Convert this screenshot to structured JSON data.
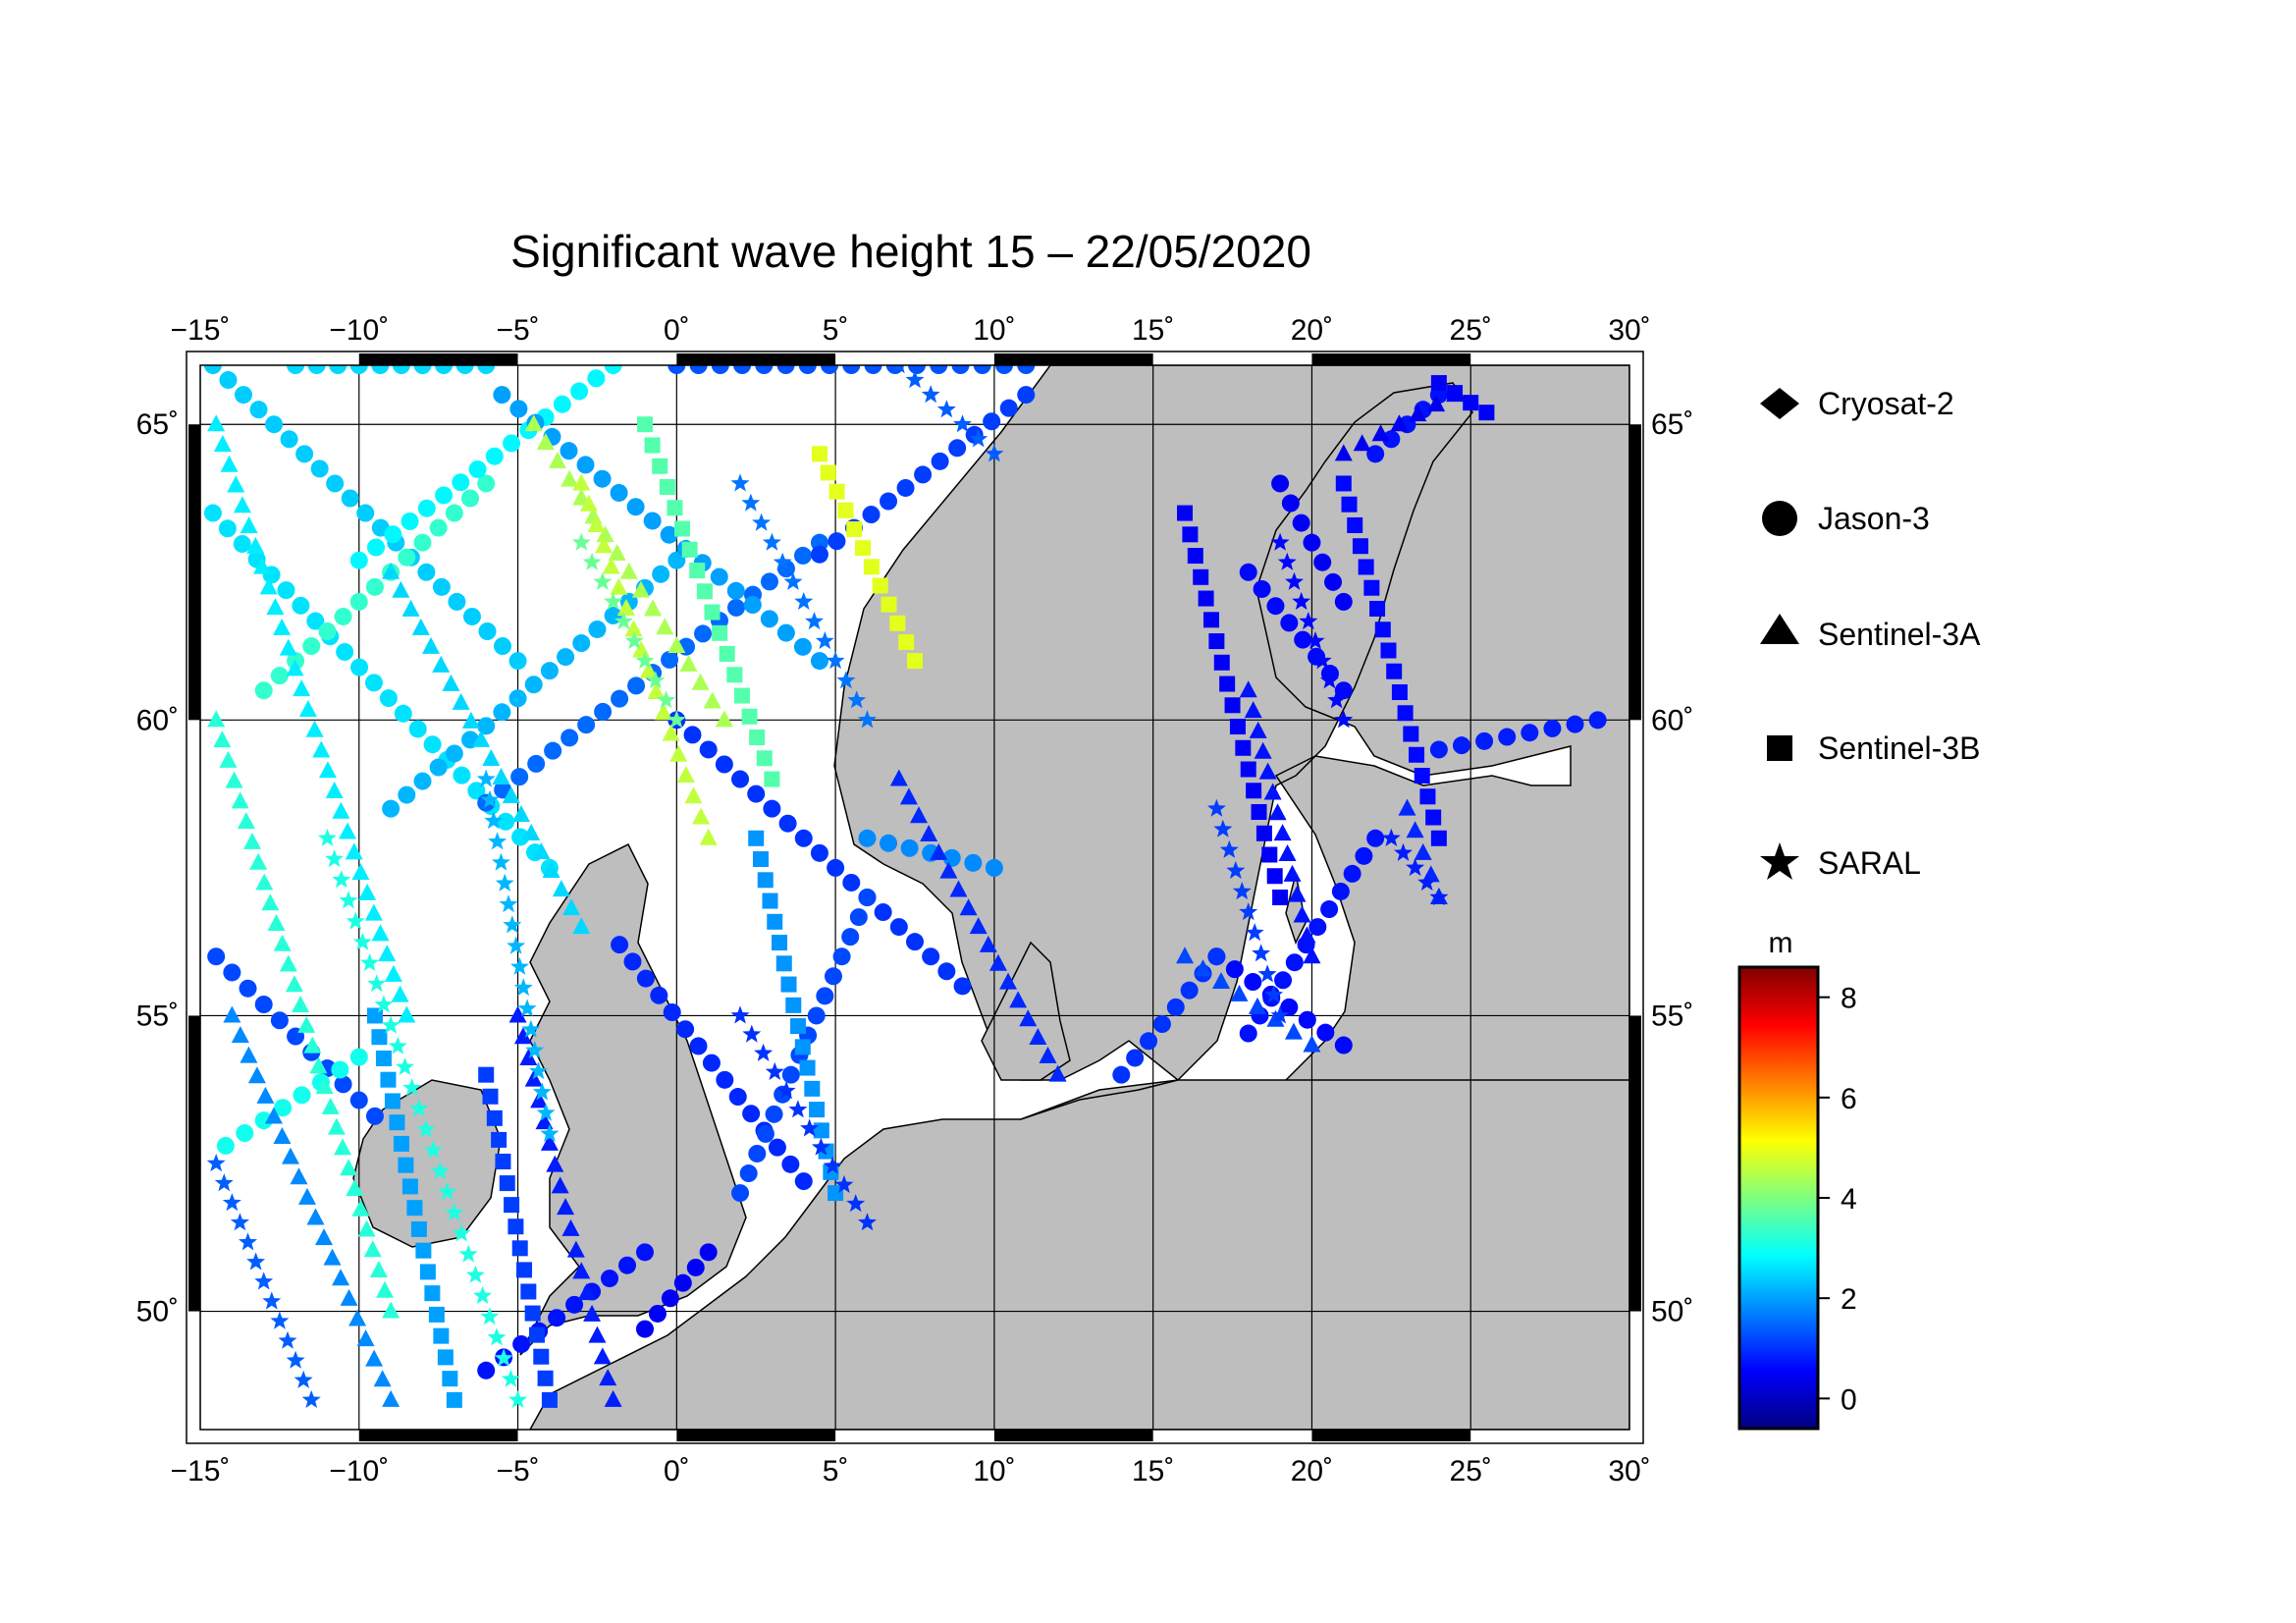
{
  "figure": {
    "title": "Significant wave height 15 – 22/05/2020"
  },
  "map": {
    "lon_range": [
      -15,
      30
    ],
    "lat_range": [
      48,
      66
    ],
    "lon_ticks": [
      {
        "value": -15,
        "label": "−15˚"
      },
      {
        "value": -10,
        "label": "−10˚"
      },
      {
        "value": -5,
        "label": "−5˚"
      },
      {
        "value": 0,
        "label": "0˚"
      },
      {
        "value": 5,
        "label": "5˚"
      },
      {
        "value": 10,
        "label": "10˚"
      },
      {
        "value": 15,
        "label": "15˚"
      },
      {
        "value": 20,
        "label": "20˚"
      },
      {
        "value": 25,
        "label": "25˚"
      },
      {
        "value": 30,
        "label": "30˚"
      }
    ],
    "lat_ticks": [
      {
        "value": 50,
        "label": "50˚"
      },
      {
        "value": 55,
        "label": "55˚"
      },
      {
        "value": 60,
        "label": "60˚"
      },
      {
        "value": 65,
        "label": "65˚"
      }
    ],
    "grid": true,
    "land_color": "#bebebe",
    "sea_color": "#ffffff",
    "frame_style": "alternating black and white"
  },
  "legend": {
    "placement": "right",
    "items": [
      {
        "label": "Cryosat-2",
        "symbol": "diamond"
      },
      {
        "label": "Jason-3",
        "symbol": "circle"
      },
      {
        "label": "Sentinel-3A",
        "symbol": "triangle"
      },
      {
        "label": "Sentinel-3B",
        "symbol": "square"
      },
      {
        "label": "SARAL",
        "symbol": "star"
      }
    ]
  },
  "colorbar": {
    "unit": "m",
    "range": [
      -0.6,
      8.6
    ],
    "ticks": [
      {
        "value": 0,
        "label": "0"
      },
      {
        "value": 2,
        "label": "2"
      },
      {
        "value": 4,
        "label": "4"
      },
      {
        "value": 6,
        "label": "6"
      },
      {
        "value": 8,
        "label": "8"
      }
    ],
    "colormap": "jet",
    "colors": [
      "#00007f",
      "#0000ff",
      "#007fff",
      "#00ffff",
      "#7fff7f",
      "#ffff00",
      "#ff7f00",
      "#ff0000",
      "#7f0000"
    ]
  },
  "chart_data": {
    "type": "scatter",
    "title": "Significant wave height 15 – 22/05/2020",
    "xlabel": "",
    "ylabel": "",
    "xlim": [
      -15,
      30
    ],
    "ylim": [
      48,
      66
    ],
    "value_unit": "m",
    "series": [
      {
        "name": "Jason-3",
        "symbol": "circle",
        "tracks": [
          {
            "lon": [
              -14.6,
              -5.0
            ],
            "lat": [
              66.0,
              61.0
            ],
            "value": 2.4
          },
          {
            "lon": [
              -14.6,
              -4.0
            ],
            "lat": [
              63.5,
              57.5
            ],
            "value": 2.6
          },
          {
            "lon": [
              -14.5,
              -9.5
            ],
            "lat": [
              56.0,
              53.3
            ],
            "value": 1.2
          },
          {
            "lon": [
              -14.2,
              -10.0
            ],
            "lat": [
              52.8,
              54.3
            ],
            "value": 3.0
          },
          {
            "lon": [
              -13.0,
              -6.0
            ],
            "lat": [
              60.5,
              64.0
            ],
            "value": 3.3
          },
          {
            "lon": [
              -10.0,
              -2.0
            ],
            "lat": [
              62.7,
              66.0
            ],
            "value": 2.8
          },
          {
            "lon": [
              -9.0,
              0.0
            ],
            "lat": [
              58.5,
              62.7
            ],
            "value": 2.2
          },
          {
            "lon": [
              -6.0,
              4.5
            ],
            "lat": [
              58.6,
              63.0
            ],
            "value": 1.5
          },
          {
            "lon": [
              -5.5,
              4.5
            ],
            "lat": [
              65.5,
              61.0
            ],
            "value": 2.0
          },
          {
            "lon": [
              0.0,
              9.0
            ],
            "lat": [
              60.0,
              55.5
            ],
            "value": 1.0
          },
          {
            "lon": [
              -1.8,
              4.0
            ],
            "lat": [
              56.2,
              52.2
            ],
            "value": 0.9
          },
          {
            "lon": [
              2.0,
              6.0
            ],
            "lat": [
              52.0,
              57.0
            ],
            "value": 1.2
          },
          {
            "lon": [
              4.5,
              11.0
            ],
            "lat": [
              62.8,
              65.5
            ],
            "value": 1.1
          },
          {
            "lon": [
              6.0,
              10.0
            ],
            "lat": [
              58.0,
              57.5
            ],
            "value": 1.8
          },
          {
            "lon": [
              -12.0,
              -6.0
            ],
            "lat": [
              66.0,
              66.0
            ],
            "value": 2.5
          },
          {
            "lon": [
              0.0,
              11.0
            ],
            "lat": [
              66.0,
              66.0
            ],
            "value": 1.3
          },
          {
            "lon": [
              -6.0,
              -1.0
            ],
            "lat": [
              49.0,
              51.0
            ],
            "value": 0.7
          },
          {
            "lon": [
              -1.0,
              1.0
            ],
            "lat": [
              49.7,
              51.0
            ],
            "value": 0.5
          },
          {
            "lon": [
              18.0,
              21.0
            ],
            "lat": [
              62.5,
              60.5
            ],
            "value": 0.6
          },
          {
            "lon": [
              19.0,
              21.0
            ],
            "lat": [
              64.0,
              62.0
            ],
            "value": 0.5
          },
          {
            "lon": [
              22.0,
              24.0
            ],
            "lat": [
              64.5,
              65.5
            ],
            "value": 0.7
          },
          {
            "lon": [
              24.0,
              29.0
            ],
            "lat": [
              59.5,
              60.0
            ],
            "value": 0.8
          },
          {
            "lon": [
              17.0,
              21.0
            ],
            "lat": [
              56.0,
              54.5
            ],
            "value": 0.6
          },
          {
            "lon": [
              18.0,
              22.0
            ],
            "lat": [
              54.7,
              58.0
            ],
            "value": 0.7
          },
          {
            "lon": [
              14.0,
              17.0
            ],
            "lat": [
              54.0,
              56.0
            ],
            "value": 1.0
          }
        ]
      },
      {
        "name": "Sentinel-3A",
        "symbol": "triangle",
        "tracks": [
          {
            "lon": [
              -14.5,
              -8.5
            ],
            "lat": [
              65.0,
              55.0
            ],
            "value": 2.7
          },
          {
            "lon": [
              -14.5,
              -9.0
            ],
            "lat": [
              60.0,
              50.0
            ],
            "value": 3.2
          },
          {
            "lon": [
              -14.0,
              -9.0
            ],
            "lat": [
              55.0,
              48.5
            ],
            "value": 1.8
          },
          {
            "lon": [
              -9.0,
              -3.0
            ],
            "lat": [
              62.5,
              56.5
            ],
            "value": 2.5
          },
          {
            "lon": [
              -5.0,
              -2.0
            ],
            "lat": [
              55.0,
              48.5
            ],
            "value": 0.8
          },
          {
            "lon": [
              -4.5,
              1.5
            ],
            "lat": [
              65.0,
              60.0
            ],
            "value": 4.4
          },
          {
            "lon": [
              -3.0,
              1.0
            ],
            "lat": [
              64.0,
              58.0
            ],
            "value": 4.6
          },
          {
            "lon": [
              7.0,
              12.0
            ],
            "lat": [
              59.0,
              54.0
            ],
            "value": 0.9
          },
          {
            "lon": [
              18.0,
              20.0
            ],
            "lat": [
              60.5,
              56.0
            ],
            "value": 0.7
          },
          {
            "lon": [
              16.0,
              20.0
            ],
            "lat": [
              56.0,
              54.5
            ],
            "value": 1.2
          },
          {
            "lon": [
              21.0,
              24.5
            ],
            "lat": [
              64.5,
              65.5
            ],
            "value": 0.4
          },
          {
            "lon": [
              23.0,
              24.0
            ],
            "lat": [
              58.5,
              57.0
            ],
            "value": 0.9
          }
        ]
      },
      {
        "name": "Sentinel-3B",
        "symbol": "square",
        "tracks": [
          {
            "lon": [
              -9.5,
              -7.0
            ],
            "lat": [
              55.0,
              48.5
            ],
            "value": 2.0
          },
          {
            "lon": [
              -6.0,
              -4.0
            ],
            "lat": [
              54.0,
              48.5
            ],
            "value": 1.1
          },
          {
            "lon": [
              -1.0,
              3.0
            ],
            "lat": [
              65.0,
              59.0
            ],
            "value": 3.6
          },
          {
            "lon": [
              2.5,
              5.0
            ],
            "lat": [
              58.0,
              52.0
            ],
            "value": 1.9
          },
          {
            "lon": [
              4.5,
              7.5
            ],
            "lat": [
              64.5,
              61.0
            ],
            "value": 4.9
          },
          {
            "lon": [
              16.0,
              19.0
            ],
            "lat": [
              63.5,
              57.0
            ],
            "value": 0.5
          },
          {
            "lon": [
              21.0,
              24.0
            ],
            "lat": [
              64.0,
              58.0
            ],
            "value": 0.6
          },
          {
            "lon": [
              24.0,
              25.5
            ],
            "lat": [
              65.7,
              65.2
            ],
            "value": 0.5
          }
        ]
      },
      {
        "name": "SARAL",
        "symbol": "star",
        "tracks": [
          {
            "lon": [
              -14.5,
              -11.5
            ],
            "lat": [
              52.5,
              48.5
            ],
            "value": 1.4
          },
          {
            "lon": [
              -11.0,
              -5.0
            ],
            "lat": [
              58.0,
              48.5
            ],
            "value": 3.1
          },
          {
            "lon": [
              -6.0,
              -4.0
            ],
            "lat": [
              59.0,
              53.0
            ],
            "value": 2.2
          },
          {
            "lon": [
              -3.0,
              0.0
            ],
            "lat": [
              63.0,
              60.0
            ],
            "value": 3.8
          },
          {
            "lon": [
              2.0,
              6.0
            ],
            "lat": [
              64.0,
              60.0
            ],
            "value": 1.6
          },
          {
            "lon": [
              7.0,
              10.0
            ],
            "lat": [
              66.0,
              64.5
            ],
            "value": 1.4
          },
          {
            "lon": [
              2.0,
              6.0
            ],
            "lat": [
              55.0,
              51.5
            ],
            "value": 1.0
          },
          {
            "lon": [
              17.0,
              19.0
            ],
            "lat": [
              58.5,
              55.0
            ],
            "value": 1.1
          },
          {
            "lon": [
              19.0,
              21.0
            ],
            "lat": [
              63.0,
              60.0
            ],
            "value": 0.6
          },
          {
            "lon": [
              22.5,
              24.0
            ],
            "lat": [
              58.0,
              57.0
            ],
            "value": 0.8
          }
        ]
      }
    ]
  }
}
